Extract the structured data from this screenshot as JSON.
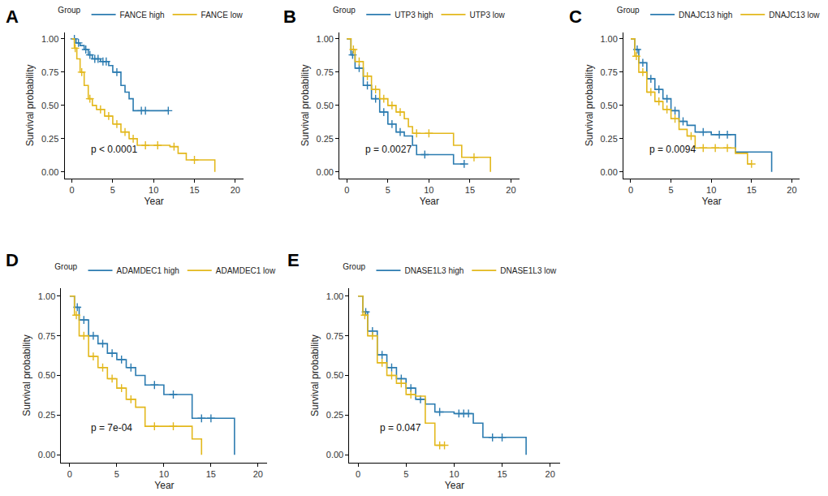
{
  "chart_data": [
    {
      "type": "line",
      "panel": "A",
      "legend_title": "Group",
      "xlabel": "Year",
      "ylabel": "Survival probability",
      "annotation": "p < 0.0001",
      "line_style": "step",
      "legend": "top",
      "xlim": [
        -0.9,
        21
      ],
      "ylim": [
        -0.05,
        1.05
      ],
      "xticks": [
        0,
        5,
        10,
        15,
        20
      ],
      "yticks": [
        {
          "value": 0,
          "label": "0.00"
        },
        {
          "value": 0.25,
          "label": "0.25"
        },
        {
          "value": 0.5,
          "label": "0.50"
        },
        {
          "value": 0.75,
          "label": "0.75"
        },
        {
          "value": 1,
          "label": "1.00"
        }
      ],
      "series": [
        {
          "name": "FANCE high",
          "color": "#2b7bb0",
          "x": [
            0,
            0.5,
            1,
            1.5,
            2,
            2.5,
            3.5,
            4.5,
            5,
            6,
            6.5,
            7,
            7.5,
            11.8
          ],
          "values": [
            1,
            0.97,
            0.95,
            0.92,
            0.88,
            0.85,
            0.83,
            0.8,
            0.75,
            0.65,
            0.6,
            0.55,
            0.46,
            0.46
          ],
          "censored": [
            0.3,
            0.8,
            1.7,
            2.2,
            2.8,
            3.2,
            3.8,
            4.2,
            5.5,
            8.5,
            9,
            11.8
          ]
        },
        {
          "name": "FANCE low",
          "color": "#e3b81c",
          "x": [
            0,
            0.3,
            0.6,
            1,
            1.5,
            2,
            2.5,
            3,
            4,
            5,
            6,
            7,
            8,
            12,
            13,
            14,
            17.5
          ],
          "values": [
            1,
            0.93,
            0.85,
            0.75,
            0.65,
            0.55,
            0.5,
            0.47,
            0.42,
            0.36,
            0.3,
            0.25,
            0.2,
            0.19,
            0.14,
            0.09,
            0
          ],
          "censored": [
            0.4,
            1.2,
            2.2,
            3.5,
            4.5,
            5.5,
            6.5,
            7.5,
            9,
            10.5,
            12.5,
            15
          ]
        }
      ]
    },
    {
      "type": "line",
      "panel": "B",
      "legend_title": "Group",
      "xlabel": "Year",
      "ylabel": "Survival probability",
      "annotation": "p = 0.0027",
      "line_style": "step",
      "legend": "top",
      "xlim": [
        -0.9,
        21
      ],
      "ylim": [
        -0.05,
        1.05
      ],
      "xticks": [
        0,
        5,
        10,
        15,
        20
      ],
      "yticks": [
        {
          "value": 0,
          "label": "0.00"
        },
        {
          "value": 0.25,
          "label": "0.25"
        },
        {
          "value": 0.5,
          "label": "0.50"
        },
        {
          "value": 0.75,
          "label": "0.75"
        },
        {
          "value": 1,
          "label": "1.00"
        }
      ],
      "series": [
        {
          "name": "UTP3 high",
          "color": "#2b7bb0",
          "x": [
            0,
            0.5,
            1,
            2,
            3,
            4,
            5,
            6,
            7,
            8,
            8.5,
            13,
            14.3
          ],
          "values": [
            1,
            0.88,
            0.78,
            0.65,
            0.55,
            0.45,
            0.36,
            0.3,
            0.27,
            0.2,
            0.13,
            0.06,
            0.06
          ],
          "censored": [
            0.7,
            1.5,
            2.5,
            3.5,
            4.5,
            5.5,
            6.5,
            9.5,
            14.3
          ]
        },
        {
          "name": "UTP3 low",
          "color": "#e3b81c",
          "x": [
            0,
            0.5,
            1,
            2,
            3,
            4,
            5,
            6,
            7,
            7.5,
            8,
            12,
            13,
            14,
            17.5
          ],
          "values": [
            1,
            0.92,
            0.83,
            0.72,
            0.62,
            0.55,
            0.5,
            0.45,
            0.4,
            0.34,
            0.29,
            0.29,
            0.2,
            0.11,
            0
          ],
          "censored": [
            0.8,
            1.5,
            2.5,
            3.5,
            4.5,
            5.5,
            6.5,
            8.5,
            10,
            15.5
          ]
        }
      ]
    },
    {
      "type": "line",
      "panel": "C",
      "legend_title": "Group",
      "xlabel": "Year",
      "ylabel": "Survival probability",
      "annotation": "p = 0.0094",
      "line_style": "step",
      "legend": "top",
      "xlim": [
        -0.9,
        21
      ],
      "ylim": [
        -0.05,
        1.05
      ],
      "xticks": [
        0,
        5,
        10,
        15,
        20
      ],
      "yticks": [
        {
          "value": 0,
          "label": "0.00"
        },
        {
          "value": 0.25,
          "label": "0.25"
        },
        {
          "value": 0.5,
          "label": "0.50"
        },
        {
          "value": 0.75,
          "label": "0.75"
        },
        {
          "value": 1,
          "label": "1.00"
        }
      ],
      "series": [
        {
          "name": "DNAJC13 high",
          "color": "#2b7bb0",
          "x": [
            0,
            0.5,
            1,
            2,
            3,
            4,
            5,
            6,
            7,
            8,
            10,
            13,
            17.5
          ],
          "values": [
            1,
            0.92,
            0.82,
            0.7,
            0.62,
            0.55,
            0.46,
            0.38,
            0.35,
            0.3,
            0.28,
            0.15,
            0
          ],
          "censored": [
            0.8,
            1.5,
            2.5,
            3.5,
            4.5,
            5.5,
            6.5,
            9,
            11,
            12
          ]
        },
        {
          "name": "DNAJC13 low",
          "color": "#e3b81c",
          "x": [
            0,
            0.5,
            1,
            2,
            3,
            4,
            5,
            6,
            7,
            8,
            13,
            14.5,
            15
          ],
          "values": [
            1,
            0.87,
            0.75,
            0.6,
            0.53,
            0.47,
            0.4,
            0.32,
            0.27,
            0.18,
            0.14,
            0.06,
            0.06
          ],
          "censored": [
            0.7,
            1.5,
            2.5,
            3.5,
            4.5,
            5.5,
            7.5,
            9,
            10.5,
            12,
            15
          ]
        }
      ]
    },
    {
      "type": "line",
      "panel": "D",
      "legend_title": "Group",
      "xlabel": "Year",
      "ylabel": "Survival probability",
      "annotation": "p = 7e-04",
      "line_style": "step",
      "legend": "top",
      "xlim": [
        -0.9,
        21
      ],
      "ylim": [
        -0.05,
        1.05
      ],
      "xticks": [
        0,
        5,
        10,
        15,
        20
      ],
      "yticks": [
        {
          "value": 0,
          "label": "0.00"
        },
        {
          "value": 0.25,
          "label": "0.25"
        },
        {
          "value": 0.5,
          "label": "0.50"
        },
        {
          "value": 0.75,
          "label": "0.75"
        },
        {
          "value": 1,
          "label": "1.00"
        }
      ],
      "series": [
        {
          "name": "ADAMDEC1 high",
          "color": "#2b7bb0",
          "x": [
            0,
            0.5,
            1,
            2,
            3,
            4,
            5,
            6,
            7,
            8,
            10,
            13,
            17.5
          ],
          "values": [
            1,
            0.93,
            0.85,
            0.75,
            0.7,
            0.64,
            0.6,
            0.55,
            0.5,
            0.44,
            0.38,
            0.23,
            0
          ],
          "censored": [
            0.8,
            1.5,
            2.5,
            3.5,
            4.5,
            5.5,
            6.5,
            9,
            11,
            14,
            15
          ]
        },
        {
          "name": "ADAMDEC1 low",
          "color": "#e3b81c",
          "x": [
            0,
            0.5,
            1,
            2,
            3,
            4,
            5,
            6,
            7,
            8,
            13,
            14
          ],
          "values": [
            1,
            0.88,
            0.75,
            0.62,
            0.55,
            0.48,
            0.42,
            0.35,
            0.3,
            0.18,
            0.1,
            0
          ],
          "censored": [
            0.7,
            1.5,
            2.5,
            3.5,
            4.5,
            5.5,
            6.5,
            9,
            11
          ]
        }
      ]
    },
    {
      "type": "line",
      "panel": "E",
      "legend_title": "Group",
      "xlabel": "Year",
      "ylabel": "Survival probability",
      "annotation": "p = 0.047",
      "line_style": "step",
      "legend": "top",
      "xlim": [
        -0.9,
        21
      ],
      "ylim": [
        -0.05,
        1.05
      ],
      "xticks": [
        0,
        5,
        10,
        15,
        20
      ],
      "yticks": [
        {
          "value": 0,
          "label": "0.00"
        },
        {
          "value": 0.25,
          "label": "0.25"
        },
        {
          "value": 0.5,
          "label": "0.50"
        },
        {
          "value": 0.75,
          "label": "0.75"
        },
        {
          "value": 1,
          "label": "1.00"
        }
      ],
      "series": [
        {
          "name": "DNASE1L3 high",
          "color": "#2b7bb0",
          "x": [
            0,
            0.5,
            1,
            2,
            3,
            4,
            5,
            6,
            7,
            8,
            10,
            12,
            13,
            17.5
          ],
          "values": [
            1,
            0.9,
            0.78,
            0.63,
            0.55,
            0.48,
            0.42,
            0.35,
            0.32,
            0.27,
            0.26,
            0.2,
            0.11,
            0
          ],
          "censored": [
            0.8,
            1.5,
            2.5,
            3.5,
            4.5,
            5.5,
            6.5,
            8.5,
            10.5,
            11,
            11.5,
            14,
            15
          ]
        },
        {
          "name": "DNASE1L3 low",
          "color": "#e3b81c",
          "x": [
            0,
            0.5,
            1,
            2,
            3,
            4,
            5,
            6,
            7,
            8,
            9
          ],
          "values": [
            1,
            0.88,
            0.75,
            0.58,
            0.5,
            0.45,
            0.38,
            0.37,
            0.2,
            0.06,
            0.06
          ],
          "censored": [
            0.7,
            1.5,
            2.5,
            3.5,
            4.5,
            5.5,
            8.5,
            9
          ]
        }
      ]
    }
  ]
}
